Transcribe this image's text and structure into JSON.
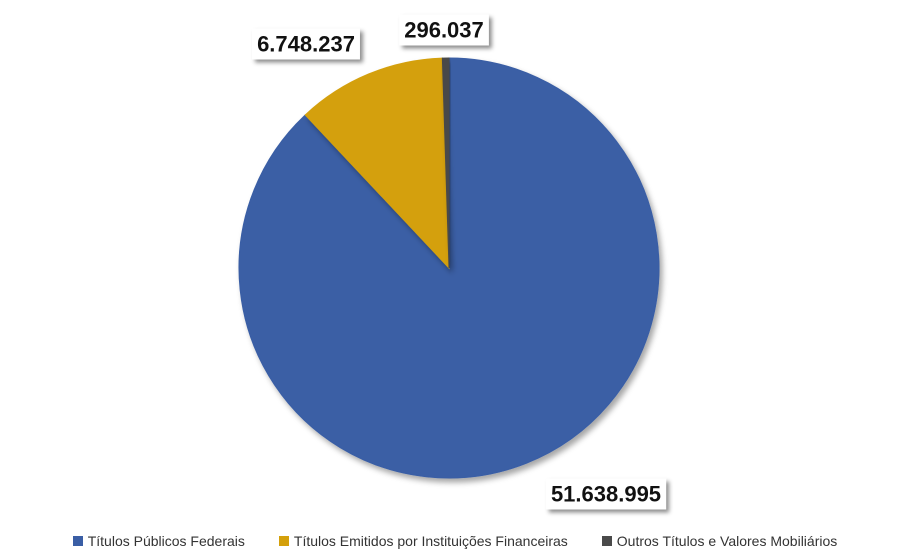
{
  "chart_data": {
    "type": "pie",
    "title": "",
    "slices": [
      {
        "label": "Títulos Públicos Federais",
        "value": 51638995,
        "display": "51.638.995",
        "color": "#3a5ea5"
      },
      {
        "label": "Títulos Emitidos por Instituições Financeiras",
        "value": 6748237,
        "display": "6.748.237",
        "color": "#d4a00b"
      },
      {
        "label": "Outros Títulos e Valores Mobiliários",
        "value": 296037,
        "display": "296.037",
        "color": "#4a4a4a"
      }
    ],
    "start_angle": "top",
    "direction": "clockwise",
    "legend_position": "bottom",
    "data_labels": "boxed, outside"
  }
}
